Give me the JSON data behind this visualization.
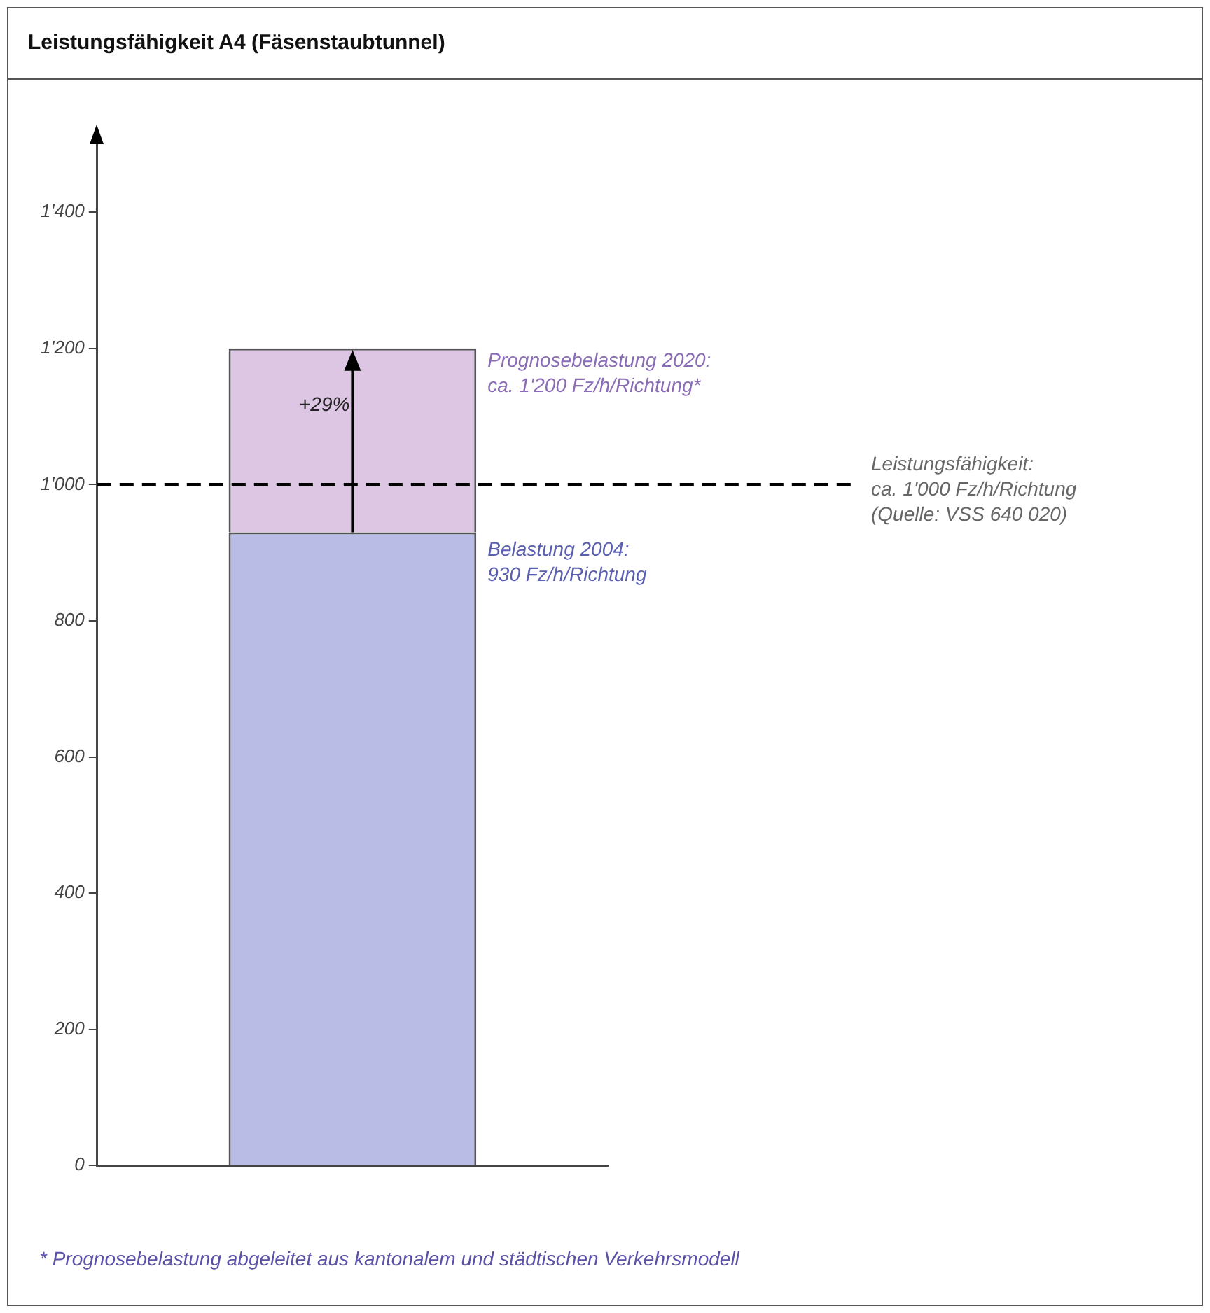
{
  "chart_data": {
    "type": "bar",
    "title": "Leistungsfähigkeit A4 (Fäsenstaubtunnel)",
    "categories": [
      null
    ],
    "stacked": true,
    "series": [
      {
        "color": "#b9bde5",
        "values": [
          930
        ]
      },
      {
        "color": "#dcc6e3",
        "values": [
          270
        ]
      }
    ],
    "ylim": [
      0,
      1500
    ],
    "yticks": [
      0,
      200,
      400,
      600,
      800,
      {
        "value": 1000,
        "label": "1'000"
      },
      {
        "value": 1200,
        "label": "1'200"
      },
      {
        "value": 1400,
        "label": "1'400"
      }
    ],
    "grid": false,
    "legend": false,
    "ref_lines": [
      {
        "axis": "y",
        "value": 1000,
        "label": "Leistungsfähigkeit:\nca. 1'000 Fz/h/Richtung\n(Quelle: VSS 640 020)",
        "line_style": "dashed",
        "color": "#000000"
      }
    ],
    "annotations": [
      "Prognosebelastung 2020:\nca. 1'200 Fz/h/Richtung*",
      "Belastung 2004:\n930 Fz/h/Richtung",
      "+29%",
      "* Prognosebelastung abgeleitet aus kantonalem und städtischen Verkehrsmodell"
    ]
  }
}
